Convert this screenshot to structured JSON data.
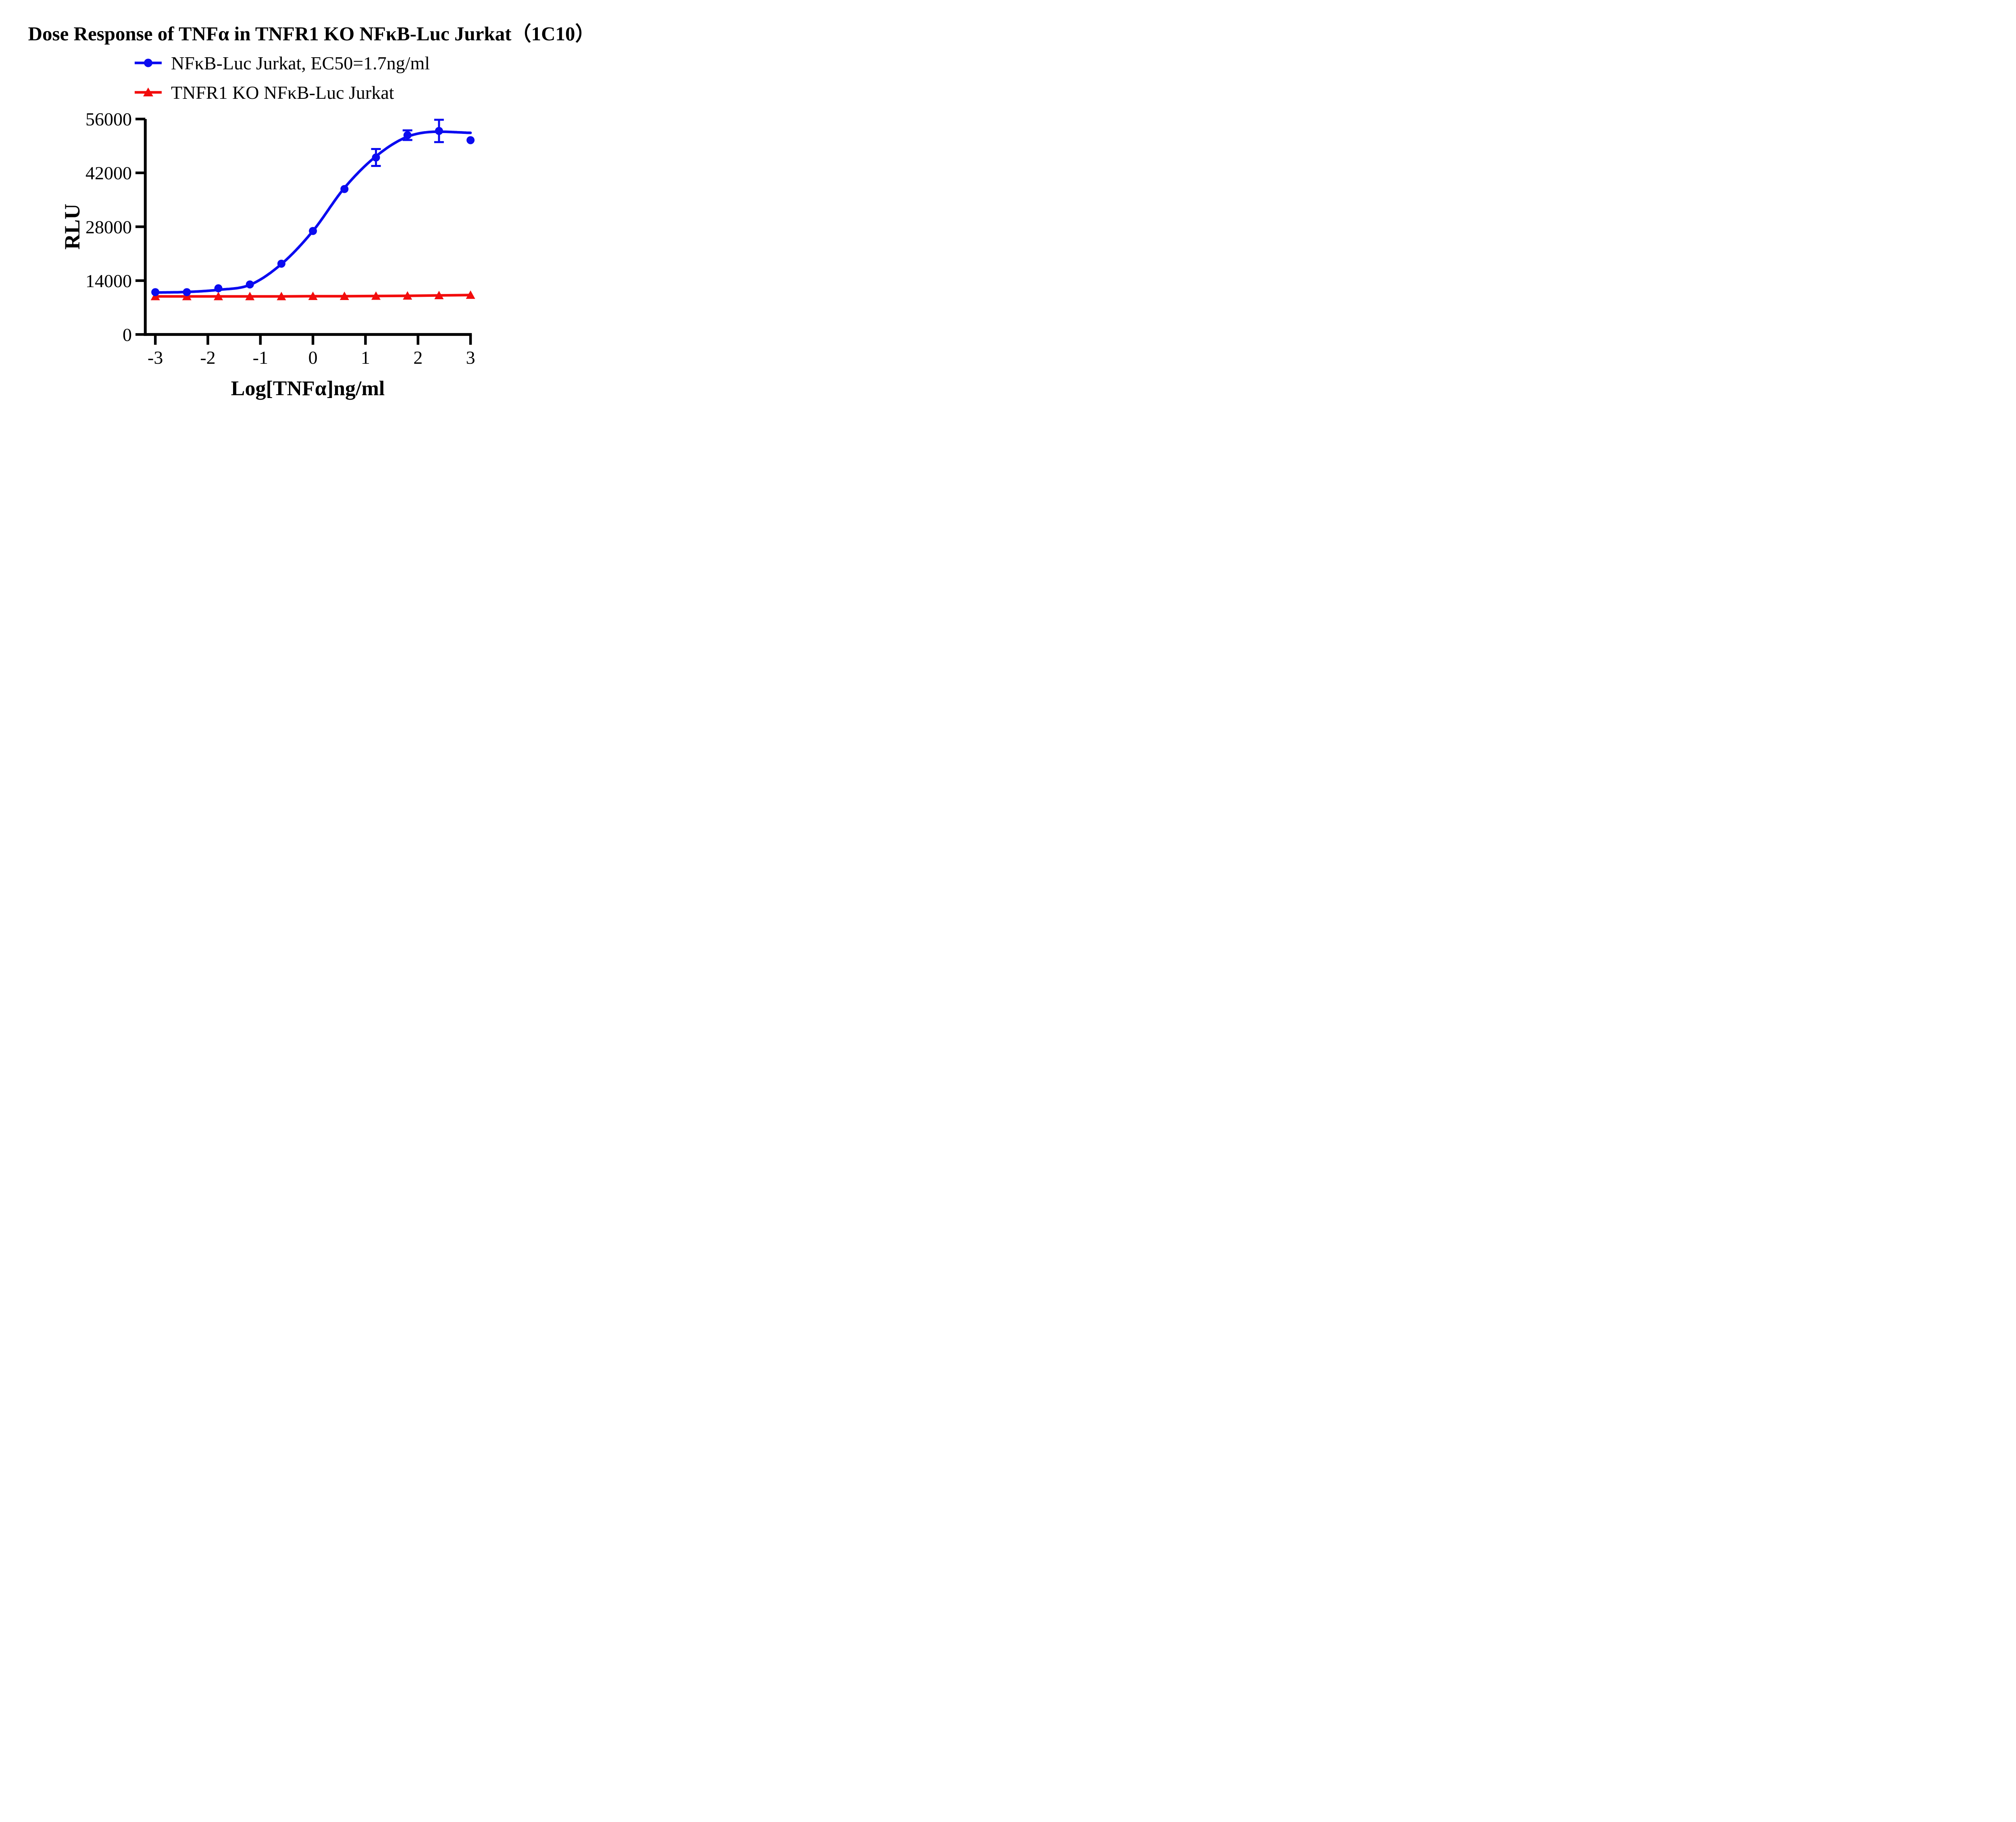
{
  "title": "Dose Response of  TNFα in TNFR1 KO NFκB-Luc Jurkat（1C10）",
  "legend": [
    {
      "label": "NFκB-Luc Jurkat, EC50=1.7ng/ml",
      "color": "#0b0bf0",
      "marker": "circle"
    },
    {
      "label": "TNFR1 KO NFκB-Luc Jurkat",
      "color": "#f20c0c",
      "marker": "triangle"
    }
  ],
  "chart_data": {
    "type": "line",
    "title": "Dose Response of  TNFα in TNFR1 KO NFκB-Luc Jurkat（1C10）",
    "xlabel": "Log[TNFα]ng/ml",
    "ylabel": "RLU",
    "x_ticks": [
      -3,
      -2,
      -1,
      0,
      1,
      2,
      3
    ],
    "y_ticks": [
      0,
      14000,
      28000,
      42000,
      56000
    ],
    "xlim": [
      -3.2,
      3
    ],
    "ylim": [
      0,
      56000
    ],
    "grid": false,
    "legend_position": "top-left",
    "axis_color": "#000000",
    "series": [
      {
        "name": "NFκB-Luc Jurkat",
        "ec50_label": "EC50=1.7ng/ml",
        "color": "#0b0bf0",
        "marker": "circle",
        "x": [
          -3,
          -2.4,
          -1.8,
          -1.2,
          -0.6,
          0,
          0.6,
          1.2,
          1.8,
          2.4,
          3
        ],
        "y": [
          11000,
          11000,
          12000,
          13000,
          18400,
          26900,
          37800,
          46000,
          51800,
          52900,
          50500
        ],
        "err": [
          0,
          0,
          0,
          0,
          0,
          0,
          0,
          2200,
          1250,
          2900,
          0
        ]
      },
      {
        "name": "TNFR1 KO NFκB-Luc Jurkat",
        "color": "#f20c0c",
        "marker": "triangle",
        "x": [
          -3,
          -2.4,
          -1.8,
          -1.2,
          -0.6,
          0,
          0.6,
          1.2,
          1.8,
          2.4,
          3
        ],
        "y": [
          9900,
          9900,
          9900,
          9900,
          9900,
          9950,
          9950,
          10000,
          10050,
          10150,
          10250
        ],
        "err": [
          0,
          0,
          0,
          0,
          0,
          0,
          0,
          0,
          0,
          0,
          0
        ]
      }
    ],
    "fit_curve": {
      "series": "NFκB-Luc Jurkat",
      "color": "#0b0bf0",
      "x": [
        -3,
        -2.4,
        -1.8,
        -1.2,
        -0.6,
        0,
        0.6,
        1.2,
        1.8,
        2.4,
        3
      ],
      "y": [
        10900,
        11050,
        11600,
        12900,
        18300,
        26900,
        38100,
        46300,
        51400,
        52700,
        52400
      ]
    }
  }
}
